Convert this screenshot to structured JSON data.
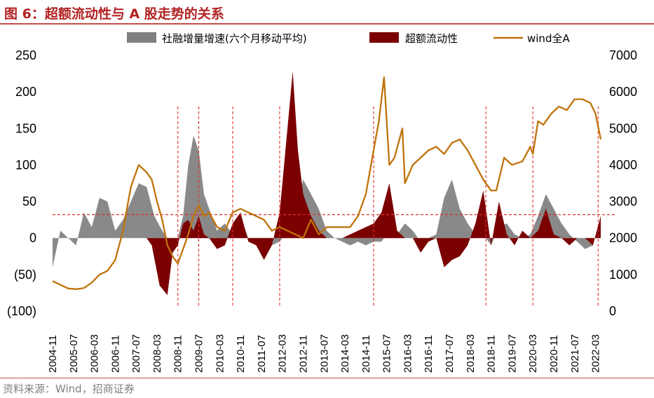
{
  "header": {
    "title": "图 6：超额流动性与 A 股走势的关系"
  },
  "footer": {
    "source": "资料来源：Wind，招商证券"
  },
  "chart_data": {
    "type": "area",
    "left_axis": {
      "ticks": [
        "250",
        "200",
        "150",
        "100",
        "50",
        "0",
        "(50)",
        "(100)"
      ],
      "values": [
        250,
        200,
        150,
        100,
        50,
        0,
        -50,
        -100
      ],
      "ylim": [
        -100,
        250
      ],
      "negative_color": "#C00000"
    },
    "right_axis": {
      "ticks": [
        "7000",
        "6000",
        "5000",
        "4000",
        "3000",
        "2000",
        "1000",
        "0"
      ],
      "values": [
        7000,
        6000,
        5000,
        4000,
        3000,
        2000,
        1000,
        0
      ],
      "ylim": [
        0,
        7000
      ]
    },
    "x_ticks": [
      "2004-11",
      "2005-07",
      "2006-03",
      "2006-11",
      "2007-07",
      "2008-03",
      "2008-11",
      "2009-07",
      "2010-03",
      "2010-11",
      "2011-07",
      "2012-03",
      "2012-11",
      "2013-07",
      "2014-03",
      "2014-11",
      "2015-07",
      "2016-03",
      "2016-11",
      "2017-07",
      "2018-03",
      "2018-11",
      "2019-07",
      "2020-03",
      "2020-11",
      "2021-07",
      "2022-03"
    ],
    "x_range": [
      "2004-11",
      "2022-05"
    ],
    "series": [
      {
        "name": "社融增量增速(六个月移动平均)",
        "kind": "area",
        "axis": "left",
        "color": "#7F7F7F",
        "x": [
          "2004-11",
          "2005-02",
          "2005-05",
          "2005-08",
          "2005-11",
          "2006-02",
          "2006-05",
          "2006-08",
          "2006-11",
          "2007-02",
          "2007-05",
          "2007-08",
          "2007-11",
          "2008-02",
          "2008-05",
          "2008-08",
          "2008-11",
          "2009-01",
          "2009-03",
          "2009-05",
          "2009-07",
          "2009-09",
          "2009-11",
          "2010-02",
          "2010-05",
          "2010-08",
          "2010-11",
          "2011-02",
          "2011-05",
          "2011-08",
          "2011-11",
          "2012-02",
          "2012-05",
          "2012-08",
          "2012-11",
          "2013-02",
          "2013-05",
          "2013-08",
          "2013-11",
          "2014-02",
          "2014-05",
          "2014-08",
          "2014-11",
          "2015-02",
          "2015-05",
          "2015-08",
          "2015-11",
          "2016-02",
          "2016-05",
          "2016-08",
          "2016-11",
          "2017-02",
          "2017-05",
          "2017-08",
          "2017-11",
          "2018-02",
          "2018-05",
          "2018-08",
          "2018-11",
          "2019-02",
          "2019-05",
          "2019-08",
          "2019-11",
          "2020-02",
          "2020-05",
          "2020-08",
          "2020-11",
          "2021-02",
          "2021-05",
          "2021-08",
          "2021-11",
          "2022-02",
          "2022-05"
        ],
        "values": [
          -40,
          10,
          0,
          -10,
          35,
          15,
          55,
          50,
          10,
          25,
          50,
          75,
          70,
          30,
          10,
          -5,
          0,
          30,
          100,
          140,
          120,
          60,
          40,
          10,
          20,
          5,
          30,
          0,
          -10,
          -15,
          -10,
          -5,
          10,
          30,
          80,
          60,
          40,
          10,
          0,
          -5,
          -10,
          -5,
          -10,
          -5,
          -5,
          10,
          5,
          20,
          10,
          -5,
          0,
          5,
          55,
          80,
          40,
          20,
          5,
          5,
          -10,
          15,
          20,
          5,
          0,
          5,
          30,
          60,
          40,
          20,
          5,
          -5,
          -15,
          -10,
          30
        ]
      },
      {
        "name": "超额流动性",
        "kind": "area",
        "axis": "left",
        "color": "#7B0000",
        "x": [
          "2004-11",
          "2005-07",
          "2006-03",
          "2006-11",
          "2007-07",
          "2007-11",
          "2008-01",
          "2008-04",
          "2008-07",
          "2008-09",
          "2008-11",
          "2009-01",
          "2009-03",
          "2009-05",
          "2009-07",
          "2009-09",
          "2009-11",
          "2010-02",
          "2010-05",
          "2010-08",
          "2010-11",
          "2011-02",
          "2011-05",
          "2011-08",
          "2011-11",
          "2012-02",
          "2012-05",
          "2012-07",
          "2012-09",
          "2012-11",
          "2013-02",
          "2013-05",
          "2013-08",
          "2013-11",
          "2014-02",
          "2014-05",
          "2014-08",
          "2014-11",
          "2015-02",
          "2015-05",
          "2015-08",
          "2015-11",
          "2016-02",
          "2016-05",
          "2016-08",
          "2016-11",
          "2017-02",
          "2017-05",
          "2017-08",
          "2017-11",
          "2018-02",
          "2018-05",
          "2018-08",
          "2018-11",
          "2019-02",
          "2019-05",
          "2019-08",
          "2019-11",
          "2020-02",
          "2020-05",
          "2020-08",
          "2020-11",
          "2021-02",
          "2021-05",
          "2021-08",
          "2021-11",
          "2022-02",
          "2022-05"
        ],
        "values": [
          0,
          0,
          0,
          0,
          0,
          0,
          -10,
          -65,
          -78,
          -20,
          -10,
          20,
          25,
          10,
          30,
          5,
          0,
          -15,
          -10,
          20,
          35,
          -5,
          -10,
          -30,
          -10,
          35,
          150,
          228,
          120,
          60,
          30,
          10,
          0,
          0,
          0,
          5,
          10,
          15,
          20,
          35,
          75,
          10,
          0,
          0,
          -20,
          -5,
          0,
          -40,
          -30,
          -25,
          -10,
          20,
          65,
          -10,
          50,
          5,
          -10,
          10,
          0,
          10,
          40,
          5,
          0,
          -10,
          0,
          0,
          -10,
          30
        ]
      },
      {
        "name": "wind全A",
        "kind": "line",
        "axis": "right",
        "color": "#C0720A",
        "x": [
          "2004-11",
          "2005-02",
          "2005-05",
          "2005-08",
          "2005-11",
          "2006-02",
          "2006-05",
          "2006-08",
          "2006-11",
          "2007-02",
          "2007-05",
          "2007-08",
          "2007-11",
          "2008-01",
          "2008-03",
          "2008-05",
          "2008-07",
          "2008-09",
          "2008-11",
          "2009-01",
          "2009-03",
          "2009-05",
          "2009-07",
          "2009-09",
          "2009-11",
          "2010-02",
          "2010-05",
          "2010-08",
          "2010-11",
          "2011-02",
          "2011-05",
          "2011-08",
          "2011-11",
          "2012-02",
          "2012-05",
          "2012-08",
          "2012-11",
          "2013-02",
          "2013-05",
          "2013-08",
          "2013-11",
          "2014-02",
          "2014-05",
          "2014-08",
          "2014-11",
          "2015-02",
          "2015-04",
          "2015-06",
          "2015-08",
          "2015-10",
          "2016-01",
          "2016-02",
          "2016-05",
          "2016-08",
          "2016-11",
          "2017-02",
          "2017-05",
          "2017-08",
          "2017-11",
          "2018-02",
          "2018-05",
          "2018-08",
          "2018-11",
          "2019-01",
          "2019-04",
          "2019-07",
          "2019-11",
          "2020-02",
          "2020-03",
          "2020-05",
          "2020-07",
          "2020-10",
          "2021-01",
          "2021-04",
          "2021-07",
          "2021-10",
          "2022-01",
          "2022-03",
          "2022-05"
        ],
        "values": [
          820,
          720,
          620,
          600,
          630,
          780,
          1000,
          1100,
          1400,
          2200,
          3400,
          4000,
          3800,
          3600,
          3000,
          2500,
          1800,
          1500,
          1300,
          1700,
          2100,
          2600,
          2900,
          2600,
          2700,
          2300,
          2200,
          2700,
          2800,
          2700,
          2600,
          2500,
          2200,
          2300,
          2200,
          2100,
          2000,
          2500,
          2100,
          2300,
          2300,
          2300,
          2300,
          2600,
          3200,
          4400,
          5200,
          6400,
          4000,
          4200,
          5000,
          3500,
          4000,
          4200,
          4400,
          4500,
          4300,
          4600,
          4700,
          4400,
          4000,
          3600,
          3300,
          3300,
          4200,
          4000,
          4100,
          4500,
          4300,
          5200,
          5100,
          5400,
          5600,
          5500,
          5800,
          5800,
          5700,
          5400,
          4700
        ]
      }
    ],
    "reference_lines": {
      "horizontal_left_value": 32,
      "color": "#E03030",
      "vertical_at": [
        "2008-11",
        "2009-07",
        "2010-08",
        "2012-02",
        "2015-02",
        "2018-09",
        "2020-03",
        "2022-04"
      ]
    },
    "legend_position": "top"
  }
}
